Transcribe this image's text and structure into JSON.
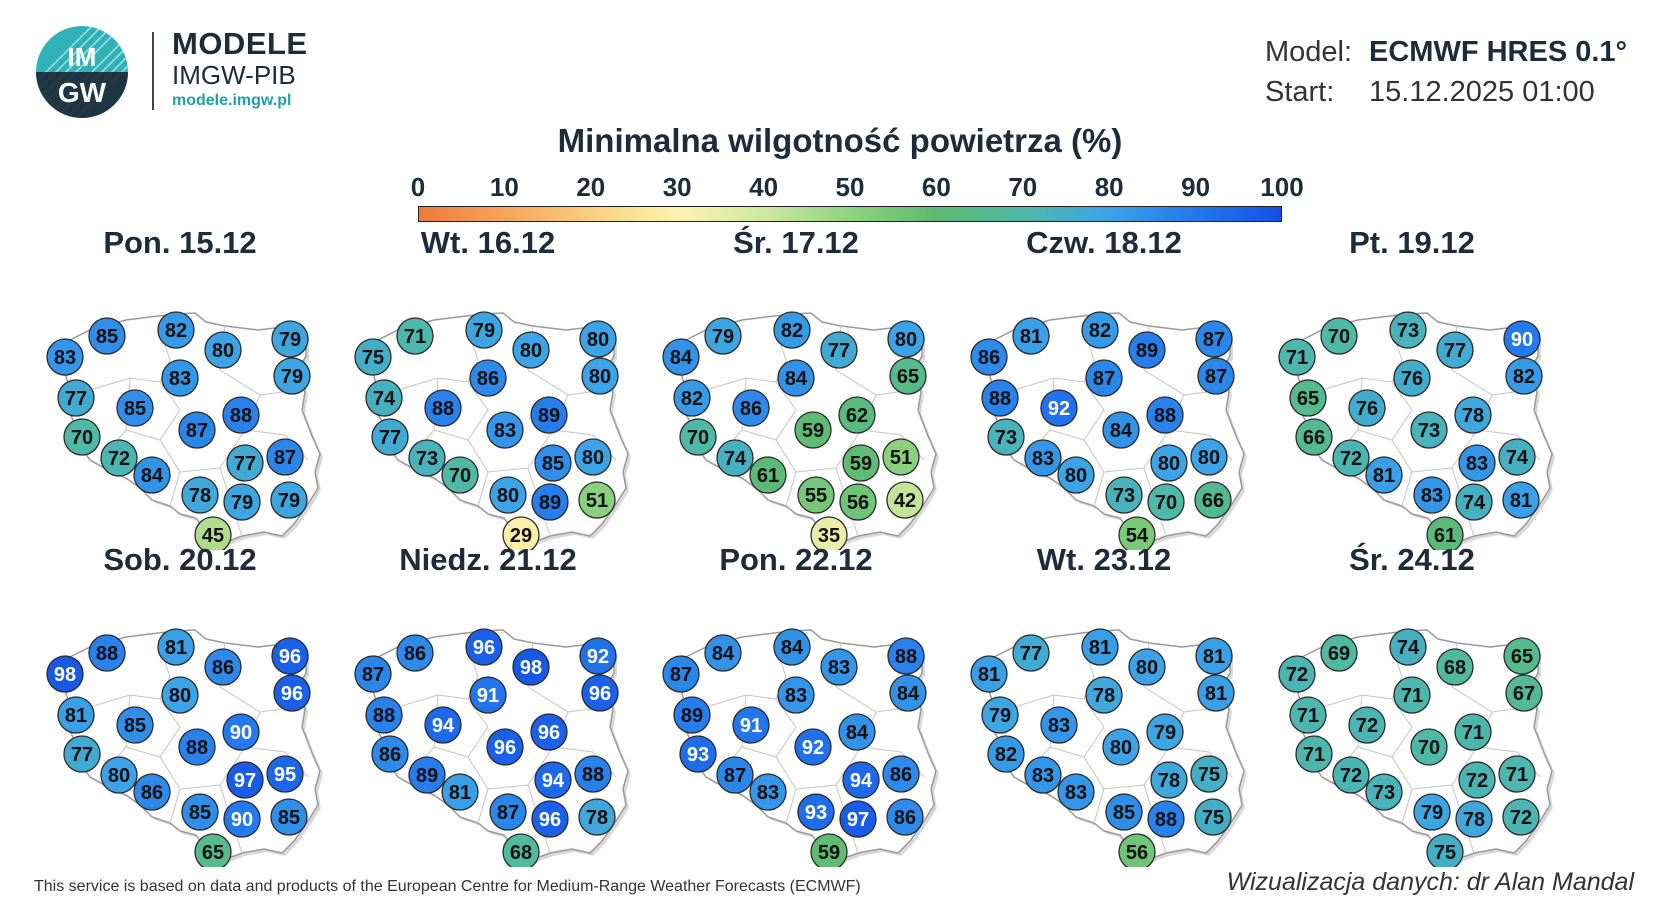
{
  "brand": {
    "logo_text_top": "IM",
    "logo_text_bottom": "GW",
    "title": "MODELE",
    "subtitle": "IMGW-PIB",
    "url": "modele.imgw.pl"
  },
  "meta": {
    "model_label": "Model:",
    "model_value": "ECMWF HRES 0.1°",
    "start_label": "Start:",
    "start_value": "15.12.2025 01:00"
  },
  "chart_title": "Minimalna wilgotność powietrza (%)",
  "colorbar": {
    "ticks": [
      "0",
      "10",
      "20",
      "30",
      "40",
      "50",
      "60",
      "70",
      "80",
      "90",
      "100"
    ],
    "colors": [
      "#f07a3c",
      "#f5a55a",
      "#f9cf7e",
      "#fcf3b0",
      "#cfe8a0",
      "#8fd27f",
      "#5cba72",
      "#4fb9a7",
      "#3ba3e6",
      "#2479ec",
      "#1550e6"
    ]
  },
  "chart_data": {
    "type": "map",
    "variable": "Minimalna wilgotność powietrza (%)",
    "range": [
      0,
      100
    ],
    "days": [
      {
        "title": "Pon. 15.12",
        "values": [
          83,
          85,
          82,
          80,
          79,
          79,
          77,
          85,
          83,
          70,
          88,
          87,
          72,
          77,
          87,
          84,
          78,
          79,
          79,
          45
        ]
      },
      {
        "title": "Wt. 16.12",
        "values": [
          75,
          71,
          79,
          80,
          80,
          80,
          74,
          88,
          86,
          77,
          89,
          83,
          73,
          85,
          80,
          70,
          80,
          89,
          51,
          29
        ]
      },
      {
        "title": "Śr. 17.12",
        "values": [
          84,
          79,
          82,
          77,
          80,
          65,
          82,
          86,
          84,
          70,
          62,
          59,
          74,
          59,
          51,
          61,
          55,
          56,
          42,
          35
        ]
      },
      {
        "title": "Czw. 18.12",
        "values": [
          86,
          81,
          82,
          89,
          87,
          87,
          88,
          92,
          87,
          73,
          88,
          84,
          83,
          80,
          80,
          80,
          73,
          70,
          66,
          54
        ]
      },
      {
        "title": "Pt. 19.12",
        "values": [
          71,
          70,
          73,
          77,
          90,
          82,
          65,
          76,
          76,
          66,
          78,
          73,
          72,
          83,
          74,
          81,
          83,
          74,
          81,
          61
        ]
      },
      {
        "title": "Sob. 20.12",
        "values": [
          98,
          88,
          81,
          86,
          96,
          96,
          81,
          85,
          80,
          77,
          90,
          88,
          80,
          97,
          95,
          86,
          85,
          90,
          85,
          65
        ]
      },
      {
        "title": "Niedz. 21.12",
        "values": [
          87,
          86,
          96,
          98,
          92,
          96,
          88,
          94,
          91,
          86,
          96,
          96,
          89,
          94,
          88,
          81,
          87,
          96,
          78,
          68
        ]
      },
      {
        "title": "Pon. 22.12",
        "values": [
          87,
          84,
          84,
          83,
          88,
          84,
          89,
          91,
          83,
          93,
          84,
          92,
          87,
          94,
          86,
          83,
          93,
          97,
          86,
          59
        ]
      },
      {
        "title": "Wt. 23.12",
        "values": [
          81,
          77,
          81,
          80,
          81,
          81,
          79,
          83,
          78,
          82,
          79,
          80,
          83,
          78,
          75,
          83,
          85,
          88,
          75,
          56
        ]
      },
      {
        "title": "Śr. 24.12",
        "values": [
          72,
          69,
          74,
          68,
          65,
          67,
          71,
          72,
          71,
          71,
          71,
          70,
          72,
          72,
          71,
          73,
          79,
          78,
          72,
          75
        ]
      }
    ]
  },
  "footer": {
    "source": "This service is based on data and products of the European Centre for Medium-Range Weather Forecasts (ECMWF)",
    "credit": "Wizualizacja danych: dr Alan Mandal"
  }
}
